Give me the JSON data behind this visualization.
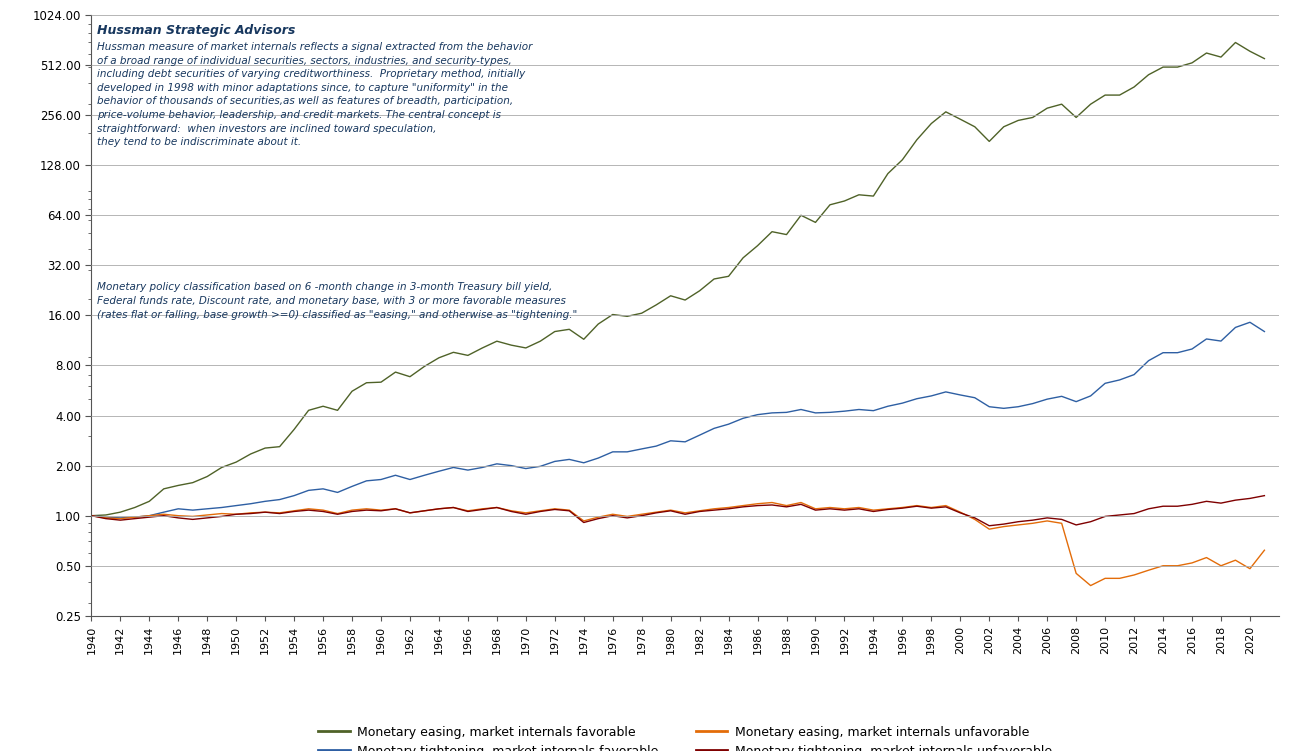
{
  "title": "Hussman Strategic Advisors",
  "annotation1": "Hussman measure of market internals reflects a signal extracted from the behavior\nof a broad range of individual securities, sectors, industries, and security-types,\nincluding debt securities of varying creditworthiness.  Proprietary method, initially\ndeveloped in 1998 with minor adaptations since, to capture \"uniformity\" in the\nbehavior of thousands of securities,as well as features of breadth, participation,\nprice-volume behavior, leadership, and credit markets. The central concept is\nstraightforward:  when investors are inclined toward speculation,\nthey tend to be indiscriminate about it.",
  "annotation2": "Monetary policy classification based on 6 -month change in 3-month Treasury bill yield,\nFederal funds rate, Discount rate, and monetary base, with 3 or more favorable measures\n(rates flat or falling, base growth >=0) classified as \"easing,\" and otherwise as \"tightening.\"",
  "color_ee": "#4f6228",
  "color_te": "#2e5fa3",
  "color_eu": "#e36c09",
  "color_tu": "#7f0000",
  "legend_ee": "Monetary easing, market internals favorable",
  "legend_te": "Monetary tightening, market internals favorable",
  "legend_eu": "Monetary easing, market internals unfavorable",
  "legend_tu": "Monetary tightening, market internals unfavorable",
  "ylim_low": 0.25,
  "ylim_high": 1024.0,
  "yticks": [
    0.25,
    0.5,
    1.0,
    2.0,
    4.0,
    8.0,
    16.0,
    32.0,
    64.0,
    128.0,
    256.0,
    512.0,
    1024.0
  ],
  "start_year": 1940,
  "end_year": 2021,
  "background_color": "#ffffff",
  "grid_color": "#aaaaaa",
  "title_color": "#17375e",
  "annotation_color": "#17375e",
  "line_width": 1.0,
  "ee_x": [
    1940,
    1941,
    1942,
    1943,
    1944,
    1945,
    1946,
    1947,
    1948,
    1949,
    1950,
    1951,
    1952,
    1953,
    1954,
    1955,
    1956,
    1957,
    1958,
    1959,
    1960,
    1961,
    1962,
    1963,
    1964,
    1965,
    1966,
    1967,
    1968,
    1969,
    1970,
    1971,
    1972,
    1973,
    1974,
    1975,
    1976,
    1977,
    1978,
    1979,
    1980,
    1981,
    1982,
    1983,
    1984,
    1985,
    1986,
    1987,
    1988,
    1989,
    1990,
    1991,
    1992,
    1993,
    1994,
    1995,
    1996,
    1997,
    1998,
    1999,
    2000,
    2001,
    2002,
    2003,
    2004,
    2005,
    2006,
    2007,
    2008,
    2009,
    2010,
    2011,
    2012,
    2013,
    2014,
    2015,
    2016,
    2017,
    2018,
    2019,
    2020,
    2021
  ],
  "ee_y": [
    1.0,
    1.01,
    1.05,
    1.12,
    1.22,
    1.45,
    1.52,
    1.58,
    1.72,
    1.95,
    2.1,
    2.35,
    2.55,
    2.6,
    3.3,
    4.3,
    4.55,
    4.3,
    5.6,
    6.3,
    6.35,
    7.3,
    6.85,
    7.9,
    8.9,
    9.6,
    9.2,
    10.2,
    11.2,
    10.6,
    10.2,
    11.2,
    12.8,
    13.2,
    11.5,
    14.2,
    16.2,
    15.8,
    16.5,
    18.5,
    21.0,
    19.8,
    22.5,
    26.5,
    27.5,
    35.5,
    42.0,
    51.0,
    49.0,
    64.0,
    58.0,
    74.0,
    78.0,
    85.0,
    83.5,
    114.0,
    138.0,
    182.0,
    228.0,
    268.0,
    242.0,
    218.0,
    178.0,
    218.0,
    238.0,
    248.0,
    282.0,
    298.0,
    248.0,
    298.0,
    338.0,
    338.0,
    378.0,
    448.0,
    498.0,
    498.0,
    528.0,
    605.0,
    572.0,
    700.0,
    620.0,
    560.0
  ],
  "te_x": [
    1940,
    1941,
    1942,
    1943,
    1944,
    1945,
    1946,
    1947,
    1948,
    1949,
    1950,
    1951,
    1952,
    1953,
    1954,
    1955,
    1956,
    1957,
    1958,
    1959,
    1960,
    1961,
    1962,
    1963,
    1964,
    1965,
    1966,
    1967,
    1968,
    1969,
    1970,
    1971,
    1972,
    1973,
    1974,
    1975,
    1976,
    1977,
    1978,
    1979,
    1980,
    1981,
    1982,
    1983,
    1984,
    1985,
    1986,
    1987,
    1988,
    1989,
    1990,
    1991,
    1992,
    1993,
    1994,
    1995,
    1996,
    1997,
    1998,
    1999,
    2000,
    2001,
    2002,
    2003,
    2004,
    2005,
    2006,
    2007,
    2008,
    2009,
    2010,
    2011,
    2012,
    2013,
    2014,
    2015,
    2016,
    2017,
    2018,
    2019,
    2020,
    2021
  ],
  "te_y": [
    1.0,
    0.98,
    0.97,
    0.98,
    1.0,
    1.05,
    1.1,
    1.08,
    1.1,
    1.12,
    1.15,
    1.18,
    1.22,
    1.25,
    1.32,
    1.42,
    1.45,
    1.38,
    1.5,
    1.62,
    1.65,
    1.75,
    1.65,
    1.75,
    1.85,
    1.95,
    1.88,
    1.95,
    2.05,
    2.0,
    1.92,
    1.98,
    2.12,
    2.18,
    2.08,
    2.22,
    2.42,
    2.42,
    2.52,
    2.62,
    2.82,
    2.78,
    3.05,
    3.35,
    3.55,
    3.85,
    4.05,
    4.15,
    4.18,
    4.35,
    4.15,
    4.18,
    4.25,
    4.35,
    4.28,
    4.55,
    4.75,
    5.05,
    5.25,
    5.55,
    5.32,
    5.12,
    4.52,
    4.42,
    4.52,
    4.72,
    5.02,
    5.22,
    4.85,
    5.25,
    6.25,
    6.55,
    7.05,
    8.55,
    9.55,
    9.55,
    10.05,
    11.55,
    11.22,
    13.55,
    14.55,
    12.8
  ],
  "eu_x": [
    1940,
    1941,
    1942,
    1943,
    1944,
    1945,
    1946,
    1947,
    1948,
    1949,
    1950,
    1951,
    1952,
    1953,
    1954,
    1955,
    1956,
    1957,
    1958,
    1959,
    1960,
    1961,
    1962,
    1963,
    1964,
    1965,
    1966,
    1967,
    1968,
    1969,
    1970,
    1971,
    1972,
    1973,
    1974,
    1975,
    1976,
    1977,
    1978,
    1979,
    1980,
    1981,
    1982,
    1983,
    1984,
    1985,
    1986,
    1987,
    1988,
    1989,
    1990,
    1991,
    1992,
    1993,
    1994,
    1995,
    1996,
    1997,
    1998,
    1999,
    2000,
    2001,
    2002,
    2003,
    2004,
    2005,
    2006,
    2007,
    2008,
    2009,
    2010,
    2011,
    2012,
    2013,
    2014,
    2015,
    2016,
    2017,
    2018,
    2019,
    2020,
    2021
  ],
  "eu_y": [
    1.0,
    0.97,
    0.96,
    0.98,
    1.0,
    1.02,
    1.0,
    0.99,
    1.01,
    1.03,
    1.02,
    1.04,
    1.05,
    1.04,
    1.07,
    1.1,
    1.08,
    1.03,
    1.08,
    1.1,
    1.08,
    1.1,
    1.04,
    1.07,
    1.1,
    1.12,
    1.07,
    1.1,
    1.12,
    1.07,
    1.04,
    1.07,
    1.1,
    1.08,
    0.93,
    0.98,
    1.02,
    0.99,
    1.02,
    1.05,
    1.08,
    1.04,
    1.07,
    1.1,
    1.12,
    1.15,
    1.18,
    1.2,
    1.15,
    1.2,
    1.1,
    1.12,
    1.1,
    1.12,
    1.08,
    1.1,
    1.12,
    1.15,
    1.12,
    1.15,
    1.05,
    0.95,
    0.83,
    0.86,
    0.88,
    0.9,
    0.93,
    0.9,
    0.45,
    0.38,
    0.42,
    0.42,
    0.44,
    0.47,
    0.5,
    0.5,
    0.52,
    0.56,
    0.5,
    0.54,
    0.48,
    0.62
  ],
  "tu_x": [
    1940,
    1941,
    1942,
    1943,
    1944,
    1945,
    1946,
    1947,
    1948,
    1949,
    1950,
    1951,
    1952,
    1953,
    1954,
    1955,
    1956,
    1957,
    1958,
    1959,
    1960,
    1961,
    1962,
    1963,
    1964,
    1965,
    1966,
    1967,
    1968,
    1969,
    1970,
    1971,
    1972,
    1973,
    1974,
    1975,
    1976,
    1977,
    1978,
    1979,
    1980,
    1981,
    1982,
    1983,
    1984,
    1985,
    1986,
    1987,
    1988,
    1989,
    1990,
    1991,
    1992,
    1993,
    1994,
    1995,
    1996,
    1997,
    1998,
    1999,
    2000,
    2001,
    2002,
    2003,
    2004,
    2005,
    2006,
    2007,
    2008,
    2009,
    2010,
    2011,
    2012,
    2013,
    2014,
    2015,
    2016,
    2017,
    2018,
    2019,
    2020,
    2021
  ],
  "tu_y": [
    1.0,
    0.96,
    0.94,
    0.96,
    0.98,
    1.0,
    0.97,
    0.95,
    0.97,
    0.99,
    1.02,
    1.03,
    1.05,
    1.03,
    1.06,
    1.08,
    1.06,
    1.02,
    1.06,
    1.08,
    1.07,
    1.1,
    1.04,
    1.07,
    1.1,
    1.12,
    1.06,
    1.09,
    1.12,
    1.06,
    1.02,
    1.06,
    1.09,
    1.07,
    0.91,
    0.96,
    1.0,
    0.97,
    1.0,
    1.04,
    1.07,
    1.02,
    1.06,
    1.08,
    1.1,
    1.13,
    1.15,
    1.16,
    1.13,
    1.17,
    1.08,
    1.1,
    1.08,
    1.1,
    1.06,
    1.09,
    1.11,
    1.14,
    1.11,
    1.13,
    1.04,
    0.97,
    0.87,
    0.89,
    0.92,
    0.94,
    0.97,
    0.95,
    0.88,
    0.92,
    0.99,
    1.01,
    1.03,
    1.1,
    1.14,
    1.14,
    1.17,
    1.22,
    1.19,
    1.24,
    1.27,
    1.32
  ]
}
